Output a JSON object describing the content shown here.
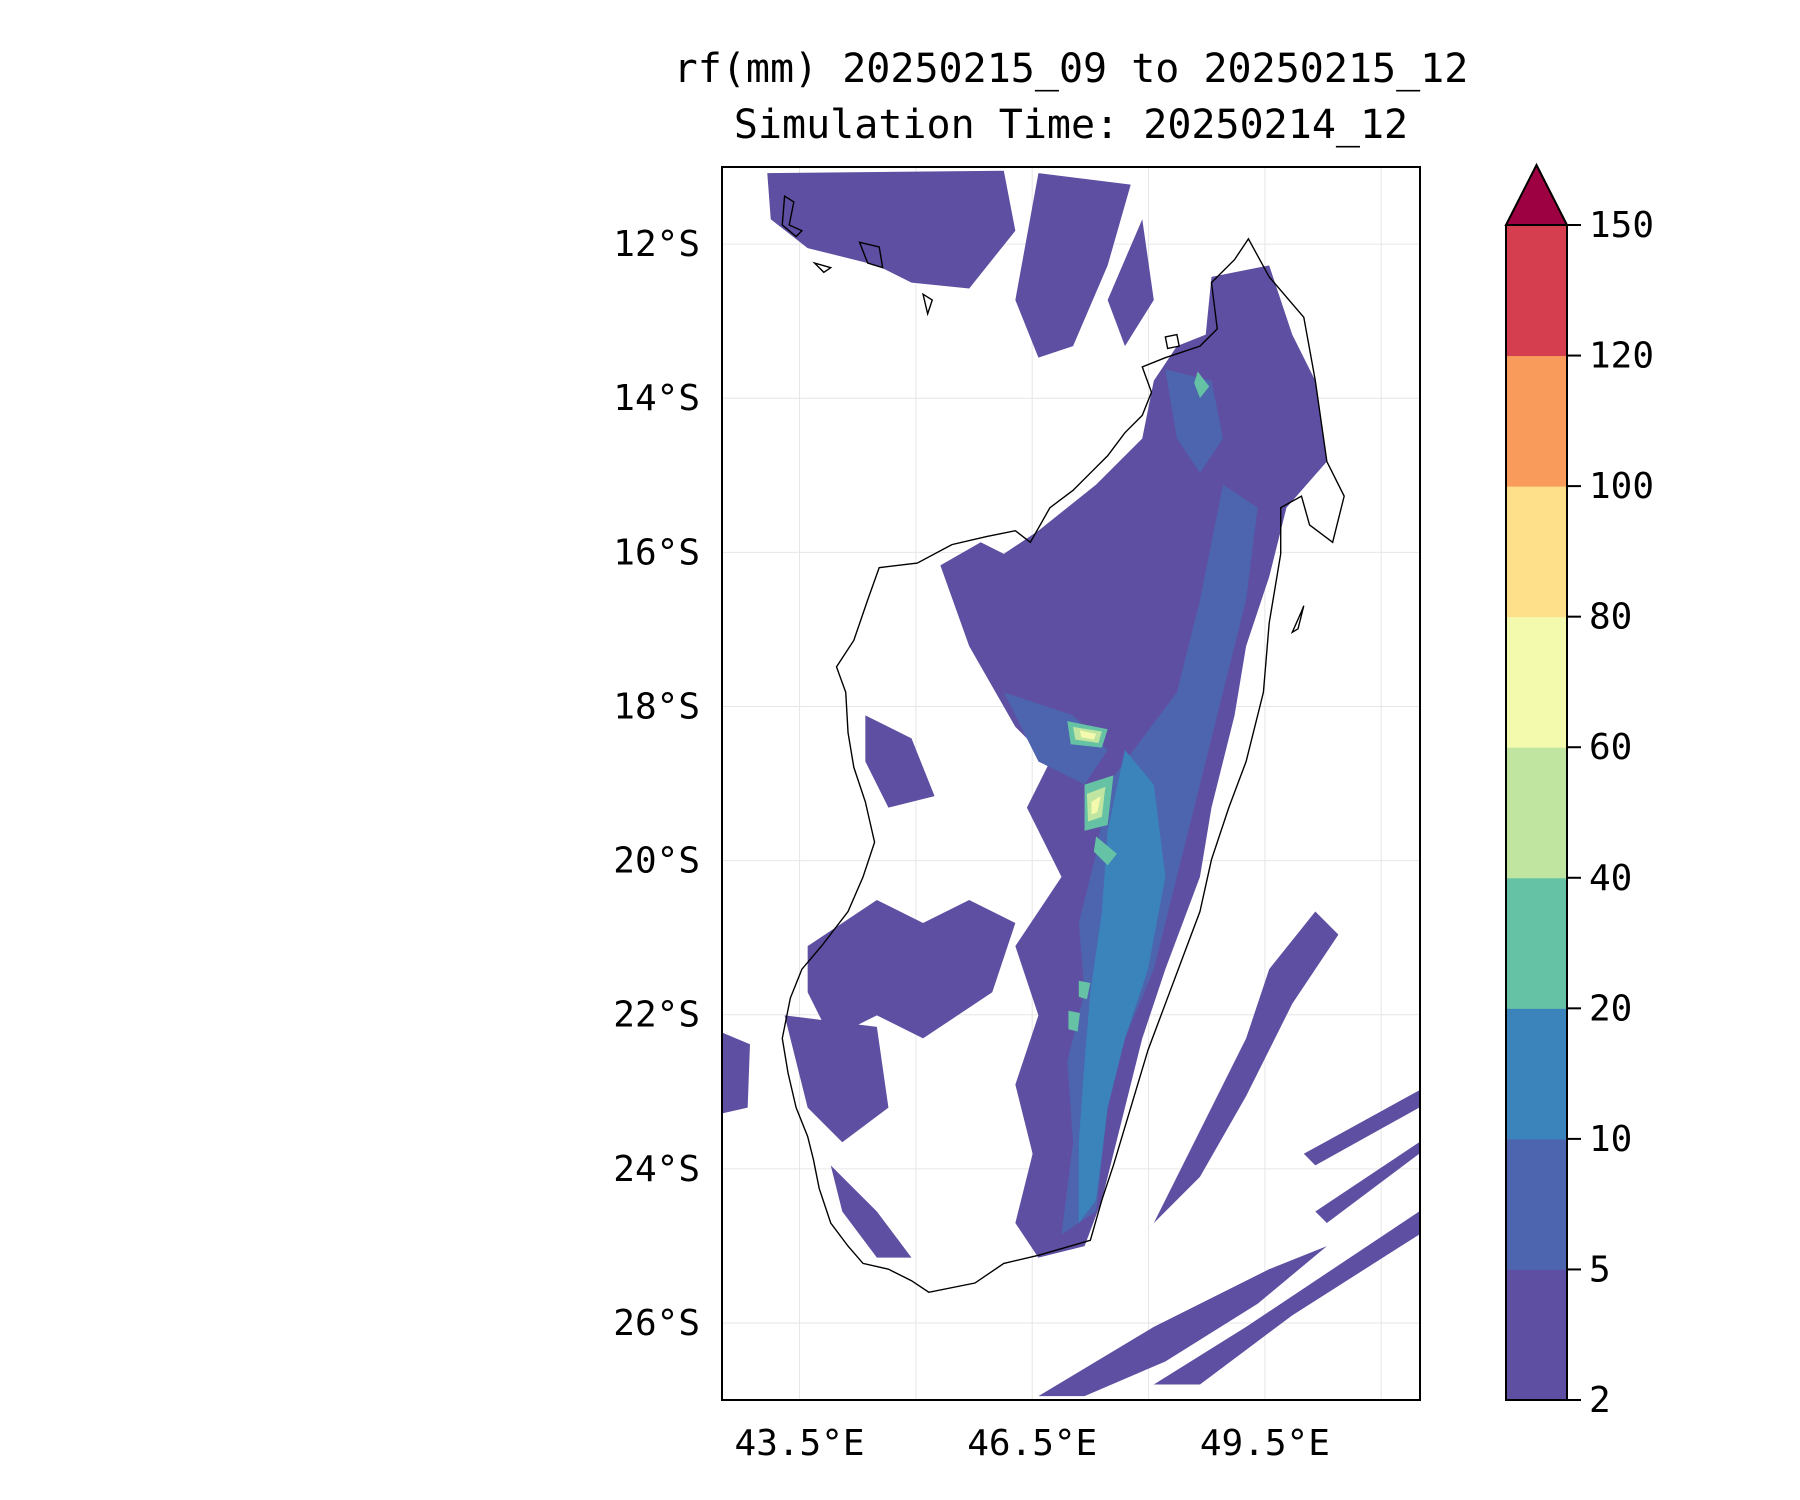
{
  "chart_data": {
    "type": "heatmap",
    "subtype": "filled-contour map",
    "title": "rf(mm) 20250215_09 to 20250215_12",
    "subtitle": "Simulation Time: 20250214_12",
    "xlabel": "",
    "ylabel": "",
    "region": "Madagascar",
    "lon_range": [
      42.5,
      51.5
    ],
    "lat_range": [
      -27,
      -11
    ],
    "x_ticks": [
      {
        "value": 43.5,
        "label": "43.5°E"
      },
      {
        "value": 46.5,
        "label": "46.5°E"
      },
      {
        "value": 49.5,
        "label": "49.5°E"
      }
    ],
    "y_ticks": [
      {
        "value": -12,
        "label": "12°S"
      },
      {
        "value": -14,
        "label": "14°S"
      },
      {
        "value": -16,
        "label": "16°S"
      },
      {
        "value": -18,
        "label": "18°S"
      },
      {
        "value": -20,
        "label": "20°S"
      },
      {
        "value": -22,
        "label": "22°S"
      },
      {
        "value": -24,
        "label": "24°S"
      },
      {
        "value": -26,
        "label": "26°S"
      }
    ],
    "gridlines_lon": [
      43.5,
      45,
      46.5,
      48,
      49.5,
      51
    ],
    "gridlines_lat": [
      -12,
      -14,
      -16,
      -18,
      -20,
      -22,
      -24,
      -26
    ],
    "grid": true,
    "colorbar": {
      "placement": "right",
      "levels": [
        2,
        5,
        10,
        20,
        40,
        60,
        80,
        100,
        120,
        150
      ],
      "tick_labels": [
        "2",
        "5",
        "10",
        "20",
        "40",
        "60",
        "80",
        "100",
        "120",
        "150"
      ],
      "colors": [
        "#5e4fa2",
        "#4d64ae",
        "#3a84bb",
        "#66c2a5",
        "#bfe5a0",
        "#f3faad",
        "#fee08b",
        "#f99b5a",
        "#d53e4f"
      ],
      "extend_max_color": "#9e0142"
    },
    "field_summary": {
      "max_band": "60-80",
      "heaviest_areas": "central highlands ridge 18.3°S–20°S near 47°E"
    }
  }
}
